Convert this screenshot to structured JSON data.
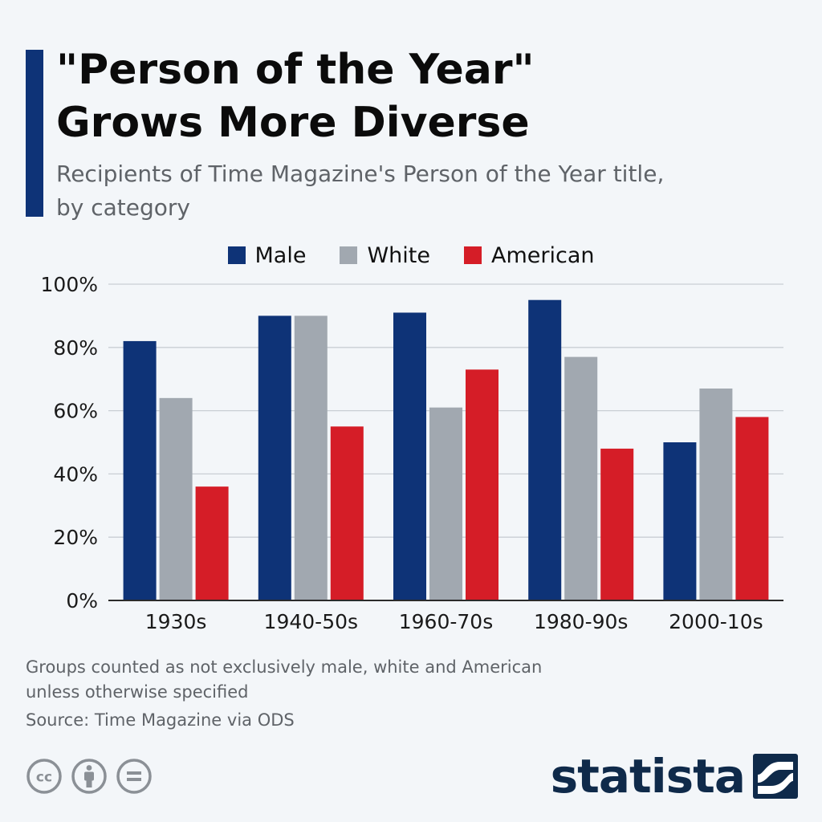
{
  "header": {
    "title_line1": "\"Person of the Year\"",
    "title_line2": "Grows More Diverse",
    "subtitle_line1": "Recipients of Time Magazine's Person of the Year title,",
    "subtitle_line2": "by category"
  },
  "colors": {
    "accent": "#0e3377",
    "male": "#0e3377",
    "white": "#a1a8b0",
    "american": "#d51d27",
    "grid": "#c9ced4",
    "axis": "#2b2b2b",
    "brand": "#0f2a4a"
  },
  "chart_data": {
    "type": "bar",
    "title": "\"Person of the Year\" Grows More Diverse",
    "categories": [
      "1930s",
      "1940-50s",
      "1960-70s",
      "1980-90s",
      "2000-10s"
    ],
    "series": [
      {
        "name": "Male",
        "values": [
          82,
          90,
          91,
          95,
          50
        ]
      },
      {
        "name": "White",
        "values": [
          64,
          90,
          61,
          77,
          67
        ]
      },
      {
        "name": "American",
        "values": [
          36,
          55,
          73,
          48,
          58
        ]
      }
    ],
    "yticks": [
      "0%",
      "20%",
      "40%",
      "60%",
      "80%",
      "100%"
    ],
    "ylim": [
      0,
      100
    ],
    "xlabel": "",
    "ylabel": "",
    "grid": true,
    "legend": "top-center"
  },
  "footer": {
    "note_line1": "Groups counted as not exclusively male, white and American",
    "note_line2": "unless otherwise specified",
    "source": "Source: Time Magazine via ODS",
    "license_icons": [
      "cc-icon",
      "attribution-icon",
      "no-derivatives-icon"
    ],
    "brand": "statista"
  }
}
